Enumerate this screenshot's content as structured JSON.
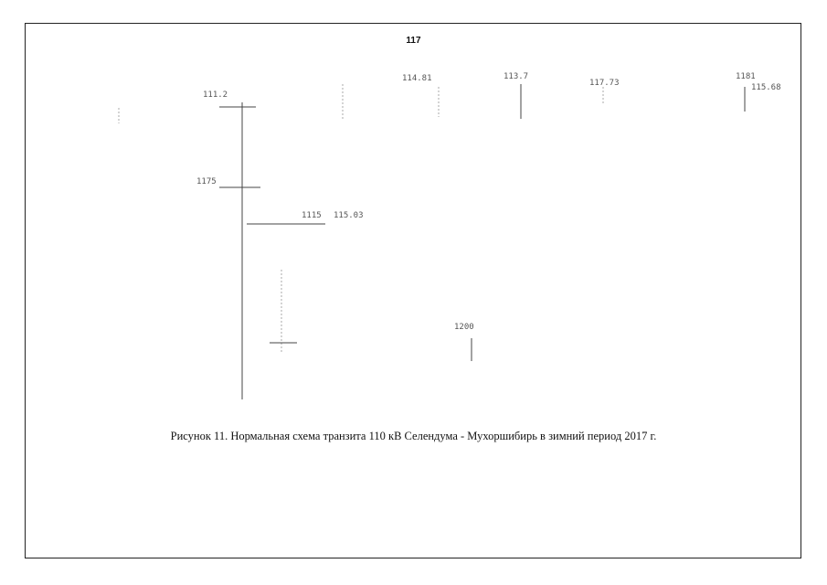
{
  "page_number": "117",
  "diagram": {
    "labels": [
      "111.2",
      "114.81",
      "113.7",
      "117.73",
      "1181",
      "115.68",
      "1175",
      "1115",
      "115.03",
      "1200"
    ]
  },
  "caption": "Рисунок 11. Нормальная схема транзита 110 кВ Селендума - Мухоршибирь в зимний период 2017 г."
}
